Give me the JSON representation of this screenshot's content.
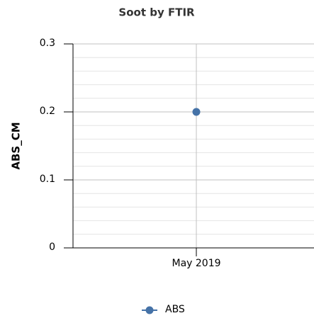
{
  "chart_data": {
    "type": "line",
    "title": "Soot by FTIR",
    "y_label": "ABS_CM",
    "categories": [
      "May 2019"
    ],
    "series": [
      {
        "name": "ABS",
        "color": "#4572a7",
        "values": [
          0.2
        ]
      }
    ],
    "ylim": [
      0,
      0.3
    ],
    "yticks": [
      0,
      0.1,
      0.2,
      0.3
    ],
    "minor_yticks": [
      0.02,
      0.04,
      0.06,
      0.08,
      0.12,
      0.14,
      0.16,
      0.18,
      0.22,
      0.24,
      0.26,
      0.28
    ],
    "grid": true,
    "legend": "bottom"
  }
}
